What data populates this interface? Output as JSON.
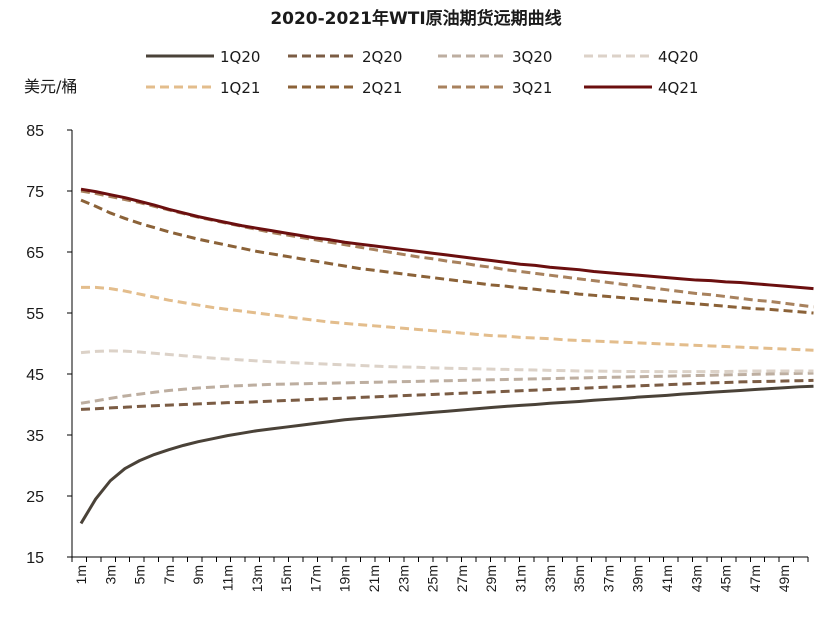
{
  "chart_data": {
    "type": "line",
    "title": "2020-2021年WTI原油期货远期曲线",
    "ylabel": "美元/桶",
    "xlabel": "",
    "ylim": [
      15,
      85
    ],
    "yticks": [
      15,
      25,
      35,
      45,
      55,
      65,
      75,
      85
    ],
    "x": [
      1,
      2,
      3,
      4,
      5,
      6,
      7,
      8,
      9,
      10,
      11,
      12,
      13,
      14,
      15,
      16,
      17,
      18,
      19,
      20,
      21,
      22,
      23,
      24,
      25,
      26,
      27,
      28,
      29,
      30,
      31,
      32,
      33,
      34,
      35,
      36,
      37,
      38,
      39,
      40,
      41,
      42,
      43,
      44,
      45,
      46,
      47,
      48,
      49,
      50,
      51
    ],
    "xtick_labels": [
      "1m",
      "3m",
      "5m",
      "7m",
      "9m",
      "11m",
      "13m",
      "15m",
      "17m",
      "19m",
      "21m",
      "23m",
      "25m",
      "27m",
      "29m",
      "31m",
      "33m",
      "35m",
      "37m",
      "39m",
      "41m",
      "43m",
      "45m",
      "47m",
      "49m"
    ],
    "legend_position": "top",
    "grid": false,
    "series": [
      {
        "name": "1Q20",
        "color": "#4a4238",
        "dash": "solid",
        "width": 3,
        "values": [
          20.5,
          24.5,
          27.5,
          29.5,
          30.8,
          31.8,
          32.6,
          33.3,
          33.9,
          34.4,
          34.9,
          35.3,
          35.7,
          36.0,
          36.3,
          36.6,
          36.9,
          37.2,
          37.5,
          37.7,
          37.9,
          38.1,
          38.3,
          38.5,
          38.7,
          38.9,
          39.1,
          39.3,
          39.5,
          39.7,
          39.85,
          40.0,
          40.2,
          40.35,
          40.5,
          40.7,
          40.85,
          41.0,
          41.2,
          41.35,
          41.5,
          41.7,
          41.85,
          42.0,
          42.15,
          42.3,
          42.45,
          42.6,
          42.75,
          42.9,
          43.0
        ]
      },
      {
        "name": "2Q20",
        "color": "#7b5c44",
        "dash": "dashed",
        "width": 3,
        "values": [
          39.2,
          39.3,
          39.45,
          39.55,
          39.7,
          39.8,
          39.9,
          40.0,
          40.1,
          40.2,
          40.3,
          40.35,
          40.45,
          40.55,
          40.65,
          40.75,
          40.85,
          40.95,
          41.05,
          41.15,
          41.25,
          41.35,
          41.45,
          41.55,
          41.65,
          41.75,
          41.85,
          41.95,
          42.05,
          42.15,
          42.25,
          42.35,
          42.45,
          42.55,
          42.65,
          42.75,
          42.85,
          42.95,
          43.05,
          43.15,
          43.25,
          43.35,
          43.45,
          43.55,
          43.6,
          43.7,
          43.75,
          43.8,
          43.85,
          43.9,
          43.95
        ]
      },
      {
        "name": "3Q20",
        "color": "#bdaea0",
        "dash": "dashed",
        "width": 3,
        "values": [
          40.2,
          40.6,
          41.0,
          41.4,
          41.7,
          42.0,
          42.3,
          42.5,
          42.7,
          42.85,
          43.0,
          43.1,
          43.2,
          43.3,
          43.35,
          43.4,
          43.45,
          43.5,
          43.55,
          43.6,
          43.65,
          43.7,
          43.75,
          43.8,
          43.85,
          43.9,
          43.95,
          44.0,
          44.05,
          44.1,
          44.15,
          44.2,
          44.25,
          44.3,
          44.35,
          44.4,
          44.45,
          44.5,
          44.55,
          44.6,
          44.65,
          44.7,
          44.75,
          44.8,
          44.85,
          44.9,
          44.95,
          45.0,
          45.05,
          45.1,
          45.15
        ]
      },
      {
        "name": "4Q20",
        "color": "#dcd2c8",
        "dash": "dashed",
        "width": 3,
        "values": [
          48.5,
          48.7,
          48.8,
          48.75,
          48.6,
          48.4,
          48.2,
          48.0,
          47.8,
          47.6,
          47.45,
          47.3,
          47.15,
          47.0,
          46.9,
          46.8,
          46.7,
          46.6,
          46.5,
          46.4,
          46.3,
          46.2,
          46.15,
          46.1,
          46.0,
          45.95,
          45.9,
          45.85,
          45.8,
          45.75,
          45.7,
          45.65,
          45.6,
          45.55,
          45.5,
          45.48,
          45.45,
          45.42,
          45.4,
          45.4,
          45.38,
          45.38,
          45.38,
          45.4,
          45.42,
          45.45,
          45.5,
          45.5,
          45.5,
          45.5,
          45.5
        ]
      },
      {
        "name": "1Q21",
        "color": "#e3bd8c",
        "dash": "dashed",
        "width": 3,
        "values": [
          59.2,
          59.2,
          59.0,
          58.6,
          58.1,
          57.6,
          57.1,
          56.7,
          56.3,
          55.9,
          55.6,
          55.3,
          55.0,
          54.7,
          54.4,
          54.1,
          53.8,
          53.5,
          53.3,
          53.1,
          52.9,
          52.7,
          52.5,
          52.3,
          52.1,
          51.9,
          51.7,
          51.5,
          51.3,
          51.2,
          51.0,
          50.9,
          50.8,
          50.6,
          50.5,
          50.4,
          50.3,
          50.2,
          50.1,
          50.0,
          49.9,
          49.8,
          49.7,
          49.6,
          49.5,
          49.4,
          49.3,
          49.2,
          49.1,
          49.0,
          48.9
        ]
      },
      {
        "name": "2Q21",
        "color": "#8b6238",
        "dash": "dashed",
        "width": 3,
        "values": [
          73.5,
          72.5,
          71.4,
          70.5,
          69.7,
          69.0,
          68.3,
          67.7,
          67.1,
          66.6,
          66.1,
          65.6,
          65.1,
          64.7,
          64.3,
          63.9,
          63.5,
          63.1,
          62.7,
          62.3,
          62.0,
          61.7,
          61.4,
          61.1,
          60.8,
          60.5,
          60.2,
          59.9,
          59.6,
          59.4,
          59.1,
          58.9,
          58.6,
          58.4,
          58.1,
          57.9,
          57.7,
          57.5,
          57.3,
          57.1,
          56.9,
          56.7,
          56.5,
          56.3,
          56.1,
          55.9,
          55.7,
          55.6,
          55.4,
          55.2,
          55.0
        ]
      },
      {
        "name": "3Q21",
        "color": "#a8825e",
        "dash": "dashed",
        "width": 3,
        "values": [
          75.0,
          74.6,
          74.1,
          73.6,
          73.1,
          72.5,
          71.9,
          71.3,
          70.7,
          70.2,
          69.7,
          69.2,
          68.7,
          68.2,
          67.8,
          67.4,
          67.0,
          66.6,
          66.2,
          65.8,
          65.4,
          65.0,
          64.6,
          64.2,
          63.9,
          63.5,
          63.2,
          62.8,
          62.5,
          62.1,
          61.8,
          61.5,
          61.2,
          60.9,
          60.6,
          60.3,
          60.0,
          59.7,
          59.4,
          59.1,
          58.8,
          58.5,
          58.2,
          58.0,
          57.7,
          57.4,
          57.1,
          56.9,
          56.6,
          56.3,
          56.0
        ]
      },
      {
        "name": "4Q21",
        "color": "#6b0f0f",
        "dash": "solid",
        "width": 3,
        "values": [
          75.3,
          74.9,
          74.4,
          73.9,
          73.3,
          72.7,
          72.0,
          71.4,
          70.8,
          70.3,
          69.8,
          69.3,
          68.9,
          68.5,
          68.1,
          67.7,
          67.3,
          67.0,
          66.6,
          66.3,
          66.0,
          65.7,
          65.4,
          65.1,
          64.8,
          64.5,
          64.2,
          63.9,
          63.6,
          63.3,
          63.0,
          62.8,
          62.5,
          62.3,
          62.1,
          61.8,
          61.6,
          61.4,
          61.2,
          61.0,
          60.8,
          60.6,
          60.4,
          60.3,
          60.1,
          60.0,
          59.8,
          59.6,
          59.4,
          59.2,
          59.0
        ]
      }
    ]
  }
}
